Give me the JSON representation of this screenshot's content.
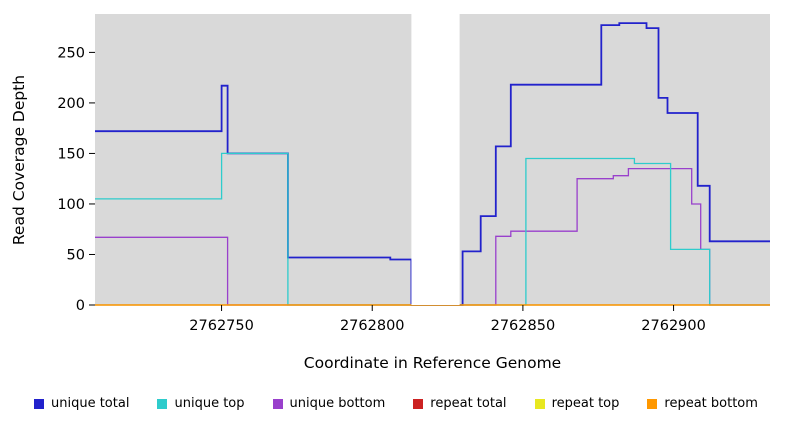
{
  "chart_data": {
    "type": "line",
    "step": true,
    "title": "",
    "xlabel": "Coordinate in Reference Genome",
    "ylabel": "Read Coverage Depth",
    "xlim": [
      2762708,
      2762932
    ],
    "ylim": [
      0,
      288
    ],
    "x_ticks": [
      2762750,
      2762800,
      2762850,
      2762900
    ],
    "y_ticks": [
      0,
      50,
      100,
      150,
      200,
      250
    ],
    "plot_background": "#d9d9d9",
    "gap_region": {
      "x_start": 2762813,
      "x_end": 2762829,
      "color": "#ffffff"
    },
    "grid": false,
    "legend_position": "bottom",
    "series": [
      {
        "name": "unique total",
        "color": "#2222cc",
        "width": 1.8,
        "points": [
          [
            2762708,
            172
          ],
          [
            2762750,
            172
          ],
          [
            2762750,
            217
          ],
          [
            2762752,
            217
          ],
          [
            2762752,
            150
          ],
          [
            2762772,
            150
          ],
          [
            2762772,
            47
          ],
          [
            2762806,
            47
          ],
          [
            2762806,
            45
          ],
          [
            2762813,
            45
          ],
          [
            2762813,
            0
          ],
          [
            2762830,
            0
          ],
          [
            2762830,
            53
          ],
          [
            2762836,
            53
          ],
          [
            2762836,
            88
          ],
          [
            2762841,
            88
          ],
          [
            2762841,
            157
          ],
          [
            2762846,
            157
          ],
          [
            2762846,
            218
          ],
          [
            2762876,
            218
          ],
          [
            2762876,
            277
          ],
          [
            2762882,
            277
          ],
          [
            2762882,
            279
          ],
          [
            2762891,
            279
          ],
          [
            2762891,
            274
          ],
          [
            2762895,
            274
          ],
          [
            2762895,
            205
          ],
          [
            2762898,
            205
          ],
          [
            2762898,
            190
          ],
          [
            2762908,
            190
          ],
          [
            2762908,
            118
          ],
          [
            2762912,
            118
          ],
          [
            2762912,
            63
          ],
          [
            2762932,
            63
          ]
        ]
      },
      {
        "name": "unique top",
        "color": "#2ecccc",
        "width": 1.3,
        "points": [
          [
            2762708,
            105
          ],
          [
            2762750,
            105
          ],
          [
            2762750,
            150
          ],
          [
            2762772,
            150
          ],
          [
            2762772,
            0
          ],
          [
            2762851,
            0
          ],
          [
            2762851,
            145
          ],
          [
            2762887,
            145
          ],
          [
            2762887,
            140
          ],
          [
            2762899,
            140
          ],
          [
            2762899,
            55
          ],
          [
            2762912,
            55
          ],
          [
            2762912,
            0
          ],
          [
            2762932,
            0
          ]
        ]
      },
      {
        "name": "unique bottom",
        "color": "#9940cc",
        "width": 1.3,
        "points": [
          [
            2762708,
            67
          ],
          [
            2762752,
            67
          ],
          [
            2762752,
            0
          ],
          [
            2762841,
            0
          ],
          [
            2762841,
            68
          ],
          [
            2762846,
            68
          ],
          [
            2762846,
            73
          ],
          [
            2762868,
            73
          ],
          [
            2762868,
            125
          ],
          [
            2762880,
            125
          ],
          [
            2762880,
            128
          ],
          [
            2762885,
            128
          ],
          [
            2762885,
            135
          ],
          [
            2762906,
            135
          ],
          [
            2762906,
            100
          ],
          [
            2762909,
            100
          ],
          [
            2762909,
            55
          ],
          [
            2762912,
            55
          ],
          [
            2762912,
            0
          ],
          [
            2762932,
            0
          ]
        ]
      },
      {
        "name": "repeat total",
        "color": "#cc2222",
        "width": 1.3,
        "points": [
          [
            2762708,
            0
          ],
          [
            2762932,
            0
          ]
        ]
      },
      {
        "name": "repeat top",
        "color": "#e8e820",
        "width": 1.3,
        "points": [
          [
            2762708,
            0
          ],
          [
            2762932,
            0
          ]
        ]
      },
      {
        "name": "repeat bottom",
        "color": "#ff9800",
        "width": 1.3,
        "points": [
          [
            2762708,
            0
          ],
          [
            2762932,
            0
          ]
        ]
      }
    ],
    "draw_order": [
      2,
      0,
      1,
      3,
      4,
      5
    ]
  }
}
